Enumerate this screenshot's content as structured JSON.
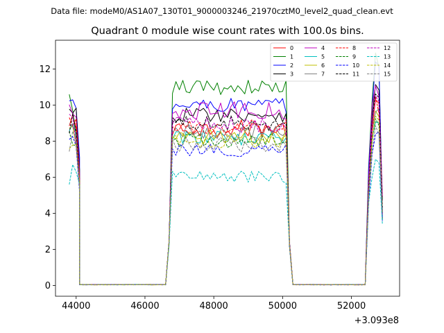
{
  "chart_data": {
    "type": "line",
    "suptitle": "Data file: modeM0/AS1A07_130T01_9000003246_21970cztM0_level2_quad_clean.evt",
    "title": "Quadrant 0 module wise count rates with 100.0s bins.",
    "xlabel": "",
    "ylabel": "",
    "x_offset_label": "+3.093e8",
    "xlim": [
      43400,
      53400
    ],
    "ylim": [
      -0.6,
      13.6
    ],
    "x_ticks": [
      44000,
      46000,
      48000,
      50000,
      52000
    ],
    "y_ticks": [
      0,
      2,
      4,
      6,
      8,
      10,
      12
    ],
    "grid": false,
    "legend_placement": "top-right",
    "segments": [
      {
        "start": 43800,
        "n": 4,
        "step": 100
      },
      {
        "start": 44100,
        "n": 26,
        "step": 100,
        "zero": true
      },
      {
        "start": 46700,
        "n": 36,
        "step": 100
      },
      {
        "start": 50300,
        "n": 22,
        "step": 100,
        "zero": true
      },
      {
        "start": 52500,
        "n": 5,
        "step": 100
      }
    ],
    "series": [
      {
        "name": "0",
        "color": "#ff0000",
        "dash": false,
        "level": 8.7,
        "amp": 0.35,
        "edge": 2.3
      },
      {
        "name": "1",
        "color": "#008000",
        "dash": false,
        "level": 11.0,
        "amp": 0.3,
        "edge": 2.3
      },
      {
        "name": "2",
        "color": "#0000ff",
        "dash": false,
        "level": 10.0,
        "amp": 0.3,
        "edge": 2.3
      },
      {
        "name": "3",
        "color": "#000000",
        "dash": false,
        "level": 9.5,
        "amp": 0.3,
        "edge": 2.3
      },
      {
        "name": "4",
        "color": "#bf00bf",
        "dash": false,
        "level": 9.7,
        "amp": 0.35,
        "edge": 2.3
      },
      {
        "name": "5",
        "color": "#00bfbf",
        "dash": false,
        "level": 8.2,
        "amp": 0.3,
        "edge": 2.3
      },
      {
        "name": "6",
        "color": "#bfbf00",
        "dash": false,
        "level": 8.3,
        "amp": 0.35,
        "edge": 2.3
      },
      {
        "name": "7",
        "color": "#808080",
        "dash": false,
        "level": 8.5,
        "amp": 0.3,
        "edge": 2.3
      },
      {
        "name": "8",
        "color": "#ff0000",
        "dash": true,
        "level": 8.8,
        "amp": 0.3,
        "edge": 2.3
      },
      {
        "name": "9",
        "color": "#008000",
        "dash": true,
        "level": 8.0,
        "amp": 0.3,
        "edge": 2.3
      },
      {
        "name": "10",
        "color": "#0000ff",
        "dash": true,
        "level": 7.5,
        "amp": 0.25,
        "edge": 2.3
      },
      {
        "name": "11",
        "color": "#000000",
        "dash": true,
        "level": 9.0,
        "amp": 0.3,
        "edge": 2.3
      },
      {
        "name": "12",
        "color": "#bf00bf",
        "dash": true,
        "level": 8.9,
        "amp": 0.3,
        "edge": 2.3
      },
      {
        "name": "13",
        "color": "#00bfbf",
        "dash": true,
        "level": 6.0,
        "amp": 0.25,
        "edge": 2.3
      },
      {
        "name": "14",
        "color": "#bfbf00",
        "dash": true,
        "level": 8.0,
        "amp": 0.3,
        "edge": 2.3
      },
      {
        "name": "15",
        "color": "#808080",
        "dash": true,
        "level": 7.8,
        "amp": 0.3,
        "edge": 2.3
      }
    ],
    "special_points": {
      "first_segment": [
        {
          "series": "1",
          "values": [
            10.6,
            9.7,
            8.2,
            6.0
          ]
        },
        {
          "series": "12",
          "values": [
            9.5,
            9.3,
            7.8,
            5.9
          ]
        },
        {
          "series": "13",
          "values": [
            5.6,
            6.7,
            6.3,
            5.6
          ]
        }
      ],
      "last_segment": [
        {
          "series": "1",
          "values": [
            6.6,
            10.2,
            12.9,
            12.1,
            4.0
          ]
        },
        {
          "series": "2",
          "values": [
            6.4,
            9.8,
            12.4,
            12.2,
            4.2
          ]
        },
        {
          "series": "13",
          "values": [
            4.6,
            6.0,
            7.0,
            6.8,
            3.4
          ]
        }
      ]
    }
  }
}
